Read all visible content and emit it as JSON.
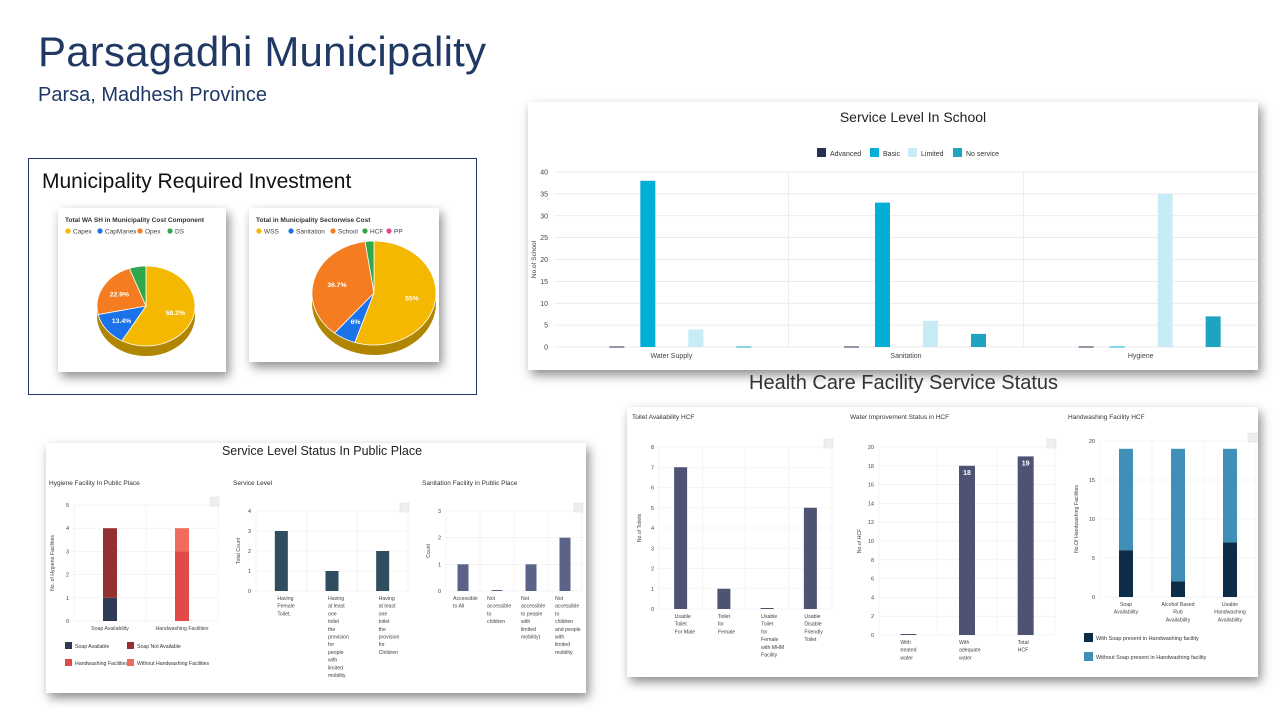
{
  "page": {
    "title": "Parsagadhi Municipality",
    "subtitle": "Parsa, Madhesh Province",
    "investment_title": "Municipality Required Investment",
    "hcf_title": "Health Care Facility Service Status"
  },
  "colors": {
    "navy": "#1f3864",
    "yellow": "#f5b800",
    "blue": "#1a73e8",
    "orange": "#f57c20",
    "green": "#2ea84a",
    "pink": "#e84393",
    "school_advanced": "#253151",
    "school_basic": "#00aed6",
    "school_limited": "#c7ecf6",
    "school_noservice": "#1fa3c1",
    "public_dark": "#2f3a55",
    "public_maroon": "#943030",
    "public_red": "#e24a4a",
    "public_lightred": "#ef6b5b",
    "public_teal": "#2e4d5f",
    "public_slate": "#5b6388",
    "hcf_bar": "#4e5373",
    "hw_dark": "#0d2c48",
    "hw_mid": "#3f8fb7",
    "hw_light": "#a9d6e8"
  },
  "chart_data": [
    {
      "id": "pie_cost_component",
      "type": "pie",
      "title": "Total WA SH in Municipality Cost Component",
      "categories": [
        "Capex",
        "CapManex",
        "Opex",
        "DS"
      ],
      "values": [
        58.2,
        13.4,
        22.9,
        5.5
      ],
      "data_labels": [
        "58.2%",
        "13.4%",
        "22.9%",
        ""
      ],
      "colors": [
        "#f5b800",
        "#1a73e8",
        "#f57c20",
        "#2ea84a"
      ]
    },
    {
      "id": "pie_sectorwise",
      "type": "pie",
      "title": "Total in Municipality Sectorwise Cost",
      "categories": [
        "WSS",
        "Sanitation",
        "School",
        "HCF",
        "PP"
      ],
      "values": [
        55,
        6,
        36.7,
        2.3,
        0
      ],
      "data_labels": [
        "55%",
        "6%",
        "36.7%",
        "",
        ""
      ],
      "colors": [
        "#f5b800",
        "#1a73e8",
        "#f57c20",
        "#2ea84a",
        "#e84393"
      ]
    },
    {
      "id": "school",
      "type": "bar",
      "title": "Service Level In School",
      "categories": [
        "Water Supply",
        "Sanitation",
        "Hygiene"
      ],
      "series": [
        {
          "name": "Advanced",
          "values": [
            0,
            0,
            0
          ]
        },
        {
          "name": "Basic",
          "values": [
            38,
            33,
            0
          ]
        },
        {
          "name": "Limited",
          "values": [
            4,
            6,
            35
          ]
        },
        {
          "name": "No service",
          "values": [
            0,
            3,
            7
          ]
        }
      ],
      "ylabel": "No.of School",
      "ylim": [
        0,
        40
      ],
      "yticks": [
        "0",
        "5",
        "10",
        "15",
        "20",
        "25",
        "30",
        "35",
        "40"
      ]
    },
    {
      "id": "public_panel",
      "type": "bar",
      "title": "Service Level Status In Public Place",
      "subcharts": [
        {
          "id": "hygiene_public",
          "type": "bar",
          "title": "Hygiene Facility In Public Place",
          "categories": [
            "Soap Availability",
            "Handwashing Facilities"
          ],
          "series": [
            {
              "name": "Soap Available",
              "values": [
                1,
                0
              ]
            },
            {
              "name": "Soap Not Available",
              "values": [
                3,
                0
              ]
            },
            {
              "name": "Handwashing Facilities",
              "values": [
                0,
                3
              ]
            },
            {
              "name": "Without Handwashing Facilities",
              "values": [
                0,
                1
              ]
            }
          ],
          "ylabel": "No. of Hygiene Facilities",
          "ylim": [
            0,
            5
          ],
          "yticks": [
            "0",
            "1",
            "2",
            "3",
            "4",
            "5"
          ]
        },
        {
          "id": "service_public",
          "type": "bar",
          "title": "Service Level",
          "categories": [
            "Having Female Toilet.",
            "Having at least one toilet the provision for people with limited mobility",
            "Having at least one toilet the provision for Children"
          ],
          "values": [
            3,
            1,
            2
          ],
          "ylabel": "Total Count",
          "ylim": [
            0,
            4
          ],
          "yticks": [
            "0",
            "1",
            "2",
            "3",
            "4"
          ]
        },
        {
          "id": "sanitation_public",
          "type": "bar",
          "title": "Sanitation Facility in Public Place",
          "categories": [
            "Accessible to All",
            "Not accessible to children",
            "Not accessible to people with limited mobility)",
            "Not accessible to children and people with limited mobility"
          ],
          "values": [
            1,
            0,
            1,
            2
          ],
          "ylabel": "Count",
          "ylim": [
            0,
            3
          ],
          "yticks": [
            "0",
            "1",
            "2",
            "3"
          ]
        }
      ]
    },
    {
      "id": "hcf_panel",
      "type": "bar",
      "subcharts": [
        {
          "id": "toilet_hcf",
          "type": "bar",
          "title": "Toilet Availability HCF",
          "categories": [
            "Usable Toilet For Male",
            "Toilet for Female",
            "Usable Toilet for Female with MHM Facility",
            "Usable Disable Friendly Toilet"
          ],
          "values": [
            7,
            1,
            0,
            5
          ],
          "ylabel": "No.of Toilets",
          "ylim": [
            0,
            8
          ],
          "yticks": [
            "0",
            "1",
            "2",
            "3",
            "4",
            "5",
            "6",
            "7",
            "8"
          ]
        },
        {
          "id": "water_hcf",
          "type": "bar",
          "title": "Water Improvement Status in HCF",
          "categories": [
            "With treated water",
            "With adequate water",
            "Total HCF"
          ],
          "values": [
            0,
            18,
            19
          ],
          "data_labels": [
            "",
            "18",
            "19"
          ],
          "ylabel": "No.of HCF",
          "ylim": [
            0,
            20
          ],
          "yticks": [
            "0",
            "2",
            "4",
            "6",
            "8",
            "10",
            "12",
            "14",
            "16",
            "18",
            "20"
          ]
        },
        {
          "id": "handwash_hcf",
          "type": "bar",
          "title": "Handwashing Facility HCF",
          "categories": [
            "Soap Availability",
            "Alcohol Based Rub Availability",
            "Usable Handwashing Availability"
          ],
          "series": [
            {
              "name": "With Soap present in Handwashing facility",
              "values": [
                6,
                2,
                7
              ]
            },
            {
              "name": "Without Soap present in Handwashing facility",
              "values": [
                13,
                17,
                12
              ]
            }
          ],
          "ylabel": "No.Of Handwashing Facilities",
          "ylim": [
            0,
            20
          ],
          "yticks": [
            "0",
            "5",
            "10",
            "15",
            "20"
          ]
        }
      ]
    }
  ]
}
